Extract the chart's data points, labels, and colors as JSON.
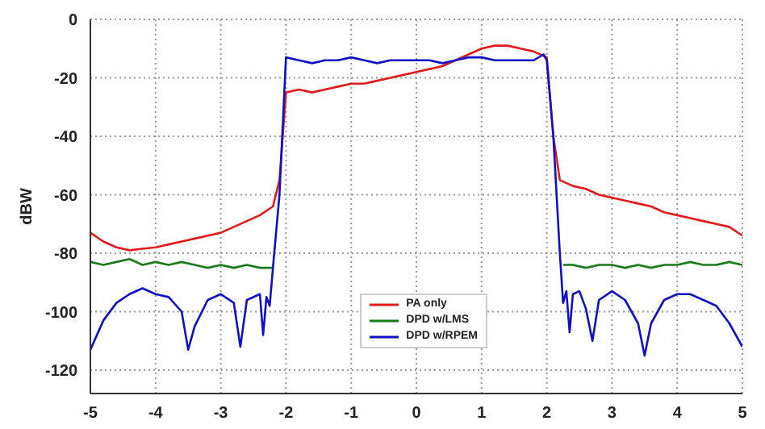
{
  "chart_data": {
    "type": "line",
    "ylabel": "dBW",
    "xlim": [
      -5,
      5
    ],
    "xticks": [
      -5,
      -4,
      -3,
      -2,
      -1,
      0,
      1,
      2,
      3,
      4,
      5
    ],
    "ylim": [
      -128,
      0
    ],
    "yticks": [
      0,
      -20,
      -40,
      -60,
      -80,
      -100,
      -120
    ],
    "grid": true,
    "line_style": "solid",
    "marker": "none",
    "legend": "bottom right",
    "series": [
      {
        "name": "PA only",
        "color": "#e31a1c",
        "x": [
          -5,
          -4.8,
          -4.6,
          -4.4,
          -4.2,
          -4,
          -3.8,
          -3.6,
          -3.4,
          -3.2,
          -3,
          -2.8,
          -2.6,
          -2.4,
          -2.2,
          -2.1,
          -2,
          -1.8,
          -1.6,
          -1.4,
          -1.2,
          -1,
          -0.8,
          -0.6,
          -0.4,
          -0.2,
          0,
          0.2,
          0.4,
          0.6,
          0.8,
          1,
          1.2,
          1.4,
          1.6,
          1.8,
          2,
          2.1,
          2.2,
          2.4,
          2.6,
          2.8,
          3,
          3.2,
          3.4,
          3.6,
          3.8,
          4,
          4.2,
          4.4,
          4.6,
          4.8,
          5
        ],
        "values": [
          -73,
          -76,
          -78,
          -79,
          -78.5,
          -78,
          -77,
          -76,
          -75,
          -74,
          -73,
          -71,
          -69,
          -67,
          -64,
          -55,
          -25,
          -24,
          -25,
          -24,
          -23,
          -22,
          -22,
          -21,
          -20,
          -19,
          -18,
          -17,
          -16,
          -14,
          -12,
          -10,
          -9,
          -9,
          -10,
          -11,
          -13,
          -40,
          -55,
          -57,
          -58,
          -60,
          -61,
          -62,
          -63,
          -64,
          -66,
          -67,
          -68,
          -69,
          -70,
          -71,
          -74
        ]
      },
      {
        "name": "DPD w/LMS",
        "color": "#1a7a1a",
        "x": [
          -5,
          -4.8,
          -4.6,
          -4.4,
          -4.2,
          -4,
          -3.8,
          -3.6,
          -3.4,
          -3.2,
          -3,
          -2.8,
          -2.6,
          -2.4,
          -2.2,
          0,
          2.25,
          2.4,
          2.6,
          2.8,
          3,
          3.2,
          3.4,
          3.6,
          3.8,
          4,
          4.2,
          4.4,
          4.6,
          4.8,
          5
        ],
        "values": [
          -83,
          -84,
          -83,
          -82,
          -84,
          -83,
          -84,
          -83,
          -84,
          -85,
          -84,
          -85,
          -84,
          -85,
          -85,
          null,
          -84,
          -84,
          -85,
          -84,
          -84,
          -85,
          -84,
          -85,
          -84,
          -84,
          -83,
          -84,
          -84,
          -83,
          -84
        ]
      },
      {
        "name": "DPD w/RPEM",
        "color": "#1010c8",
        "x": [
          -5,
          -4.8,
          -4.6,
          -4.4,
          -4.2,
          -4,
          -3.8,
          -3.6,
          -3.5,
          -3.4,
          -3.2,
          -3,
          -2.8,
          -2.7,
          -2.6,
          -2.4,
          -2.35,
          -2.3,
          -2.25,
          -2.2,
          -2.1,
          -2,
          -1.8,
          -1.6,
          -1.4,
          -1.2,
          -1,
          -0.8,
          -0.6,
          -0.4,
          -0.2,
          0,
          0.2,
          0.4,
          0.6,
          0.8,
          1,
          1.2,
          1.4,
          1.6,
          1.8,
          1.95,
          2,
          2.1,
          2.2,
          2.25,
          2.3,
          2.35,
          2.4,
          2.5,
          2.6,
          2.7,
          2.8,
          3,
          3.2,
          3.4,
          3.5,
          3.6,
          3.8,
          4,
          4.2,
          4.4,
          4.6,
          4.8,
          5
        ],
        "values": [
          -113,
          -103,
          -97,
          -94,
          -92,
          -94,
          -95,
          -100,
          -113,
          -105,
          -96,
          -94,
          -97,
          -112,
          -96,
          -94,
          -108,
          -95,
          -98,
          -85,
          -60,
          -13,
          -14,
          -15,
          -14,
          -14,
          -13,
          -14,
          -15,
          -14,
          -14,
          -14,
          -14,
          -15,
          -14,
          -13,
          -13,
          -14,
          -14,
          -14,
          -14,
          -12,
          -14,
          -40,
          -80,
          -97,
          -93,
          -107,
          -94,
          -93,
          -99,
          -110,
          -96,
          -93,
          -96,
          -104,
          -115,
          -104,
          -96,
          -94,
          -94,
          -96,
          -98,
          -104,
          -112
        ]
      }
    ]
  }
}
